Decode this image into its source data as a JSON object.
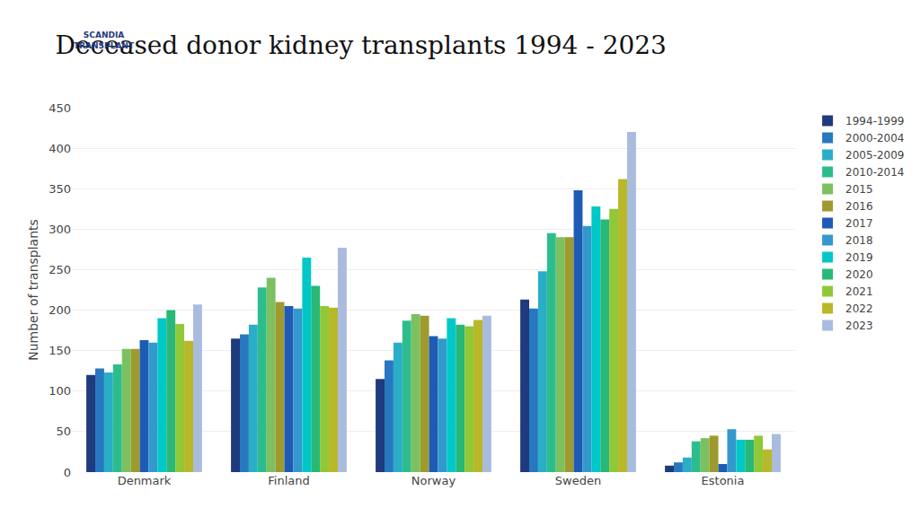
{
  "chart_data": {
    "type": "bar",
    "title": "Deceased donor kidney transplants 1994 - 2023",
    "ylabel": "Number of transplants",
    "annotations": [
      "SCANDIA\nTRANSPLANT"
    ],
    "categories": [
      "Denmark",
      "Finland",
      "Norway",
      "Sweden",
      "Estonia"
    ],
    "series": [
      {
        "name": "1994-1999",
        "color": "#1F3A7D",
        "values": [
          120,
          165,
          115,
          213,
          8
        ]
      },
      {
        "name": "2000-2004",
        "color": "#2878C0",
        "values": [
          128,
          170,
          138,
          202,
          12
        ]
      },
      {
        "name": "2005-2009",
        "color": "#2AAEC8",
        "values": [
          123,
          182,
          160,
          248,
          18
        ]
      },
      {
        "name": "2010-2014",
        "color": "#2DBD8C",
        "values": [
          133,
          228,
          187,
          295,
          38
        ]
      },
      {
        "name": "2015",
        "color": "#7DC060",
        "values": [
          152,
          240,
          195,
          290,
          42
        ]
      },
      {
        "name": "2016",
        "color": "#9E9A2E",
        "values": [
          152,
          210,
          193,
          290,
          45
        ]
      },
      {
        "name": "2017",
        "color": "#1E5BB5",
        "values": [
          163,
          205,
          168,
          348,
          10
        ]
      },
      {
        "name": "2018",
        "color": "#3399CC",
        "values": [
          160,
          202,
          165,
          304,
          53
        ]
      },
      {
        "name": "2019",
        "color": "#00C8C8",
        "values": [
          190,
          265,
          190,
          328,
          40
        ]
      },
      {
        "name": "2020",
        "color": "#28B878",
        "values": [
          200,
          230,
          182,
          312,
          40
        ]
      },
      {
        "name": "2021",
        "color": "#90C838",
        "values": [
          183,
          205,
          180,
          325,
          45
        ]
      },
      {
        "name": "2022",
        "color": "#B8B828",
        "values": [
          162,
          203,
          188,
          362,
          28
        ]
      },
      {
        "name": "2023",
        "color": "#AABCDE",
        "values": [
          207,
          277,
          193,
          420,
          47
        ]
      }
    ],
    "ylim": [
      0,
      450
    ],
    "yticks": [
      0,
      50,
      100,
      150,
      200,
      250,
      300,
      350,
      400,
      450
    ],
    "grid": true,
    "legend": "right"
  }
}
